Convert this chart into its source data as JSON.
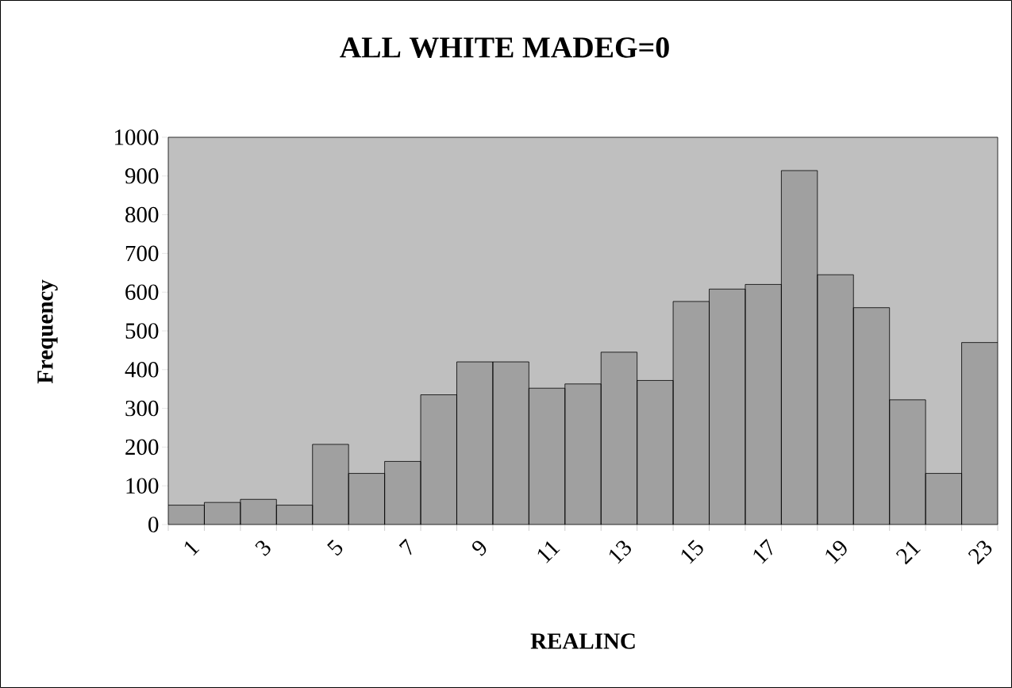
{
  "chart_data": {
    "type": "bar",
    "title": "ALL WHITE MADEG=0",
    "xlabel": "REALINC",
    "ylabel": "Frequency",
    "categories": [
      "1",
      null,
      "3",
      null,
      "5",
      null,
      "7",
      null,
      "9",
      null,
      "11",
      null,
      "13",
      null,
      "15",
      null,
      "17",
      null,
      "19",
      null,
      "21",
      null,
      "23"
    ],
    "values": [
      50,
      57,
      65,
      50,
      207,
      132,
      163,
      335,
      420,
      420,
      352,
      363,
      445,
      372,
      576,
      608,
      620,
      914,
      645,
      560,
      322,
      132,
      470
    ],
    "color": "#a0a0a0",
    "ylim": [
      0,
      1000
    ],
    "yticks": [
      0,
      100,
      200,
      300,
      400,
      500,
      600,
      700,
      800,
      900,
      1000
    ]
  }
}
